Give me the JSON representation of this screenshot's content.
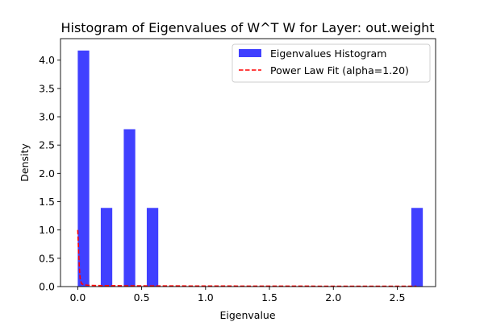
{
  "chart_data": {
    "type": "bar",
    "title": "Histogram of Eigenvalues of W^T W for Layer: out.weight",
    "xlabel": "Eigenvalue",
    "ylabel": "Density",
    "xlim": [
      -0.135,
      2.8
    ],
    "ylim": [
      0,
      4.38
    ],
    "xticks": [
      0.0,
      0.5,
      1.0,
      1.5,
      2.0,
      2.5
    ],
    "xtick_labels": [
      "0.0",
      "0.5",
      "1.0",
      "1.5",
      "2.0",
      "2.5"
    ],
    "yticks": [
      0.0,
      0.5,
      1.0,
      1.5,
      2.0,
      2.5,
      3.0,
      3.5,
      4.0
    ],
    "ytick_labels": [
      "0.0",
      "0.5",
      "1.0",
      "1.5",
      "2.0",
      "2.5",
      "3.0",
      "3.5",
      "4.0"
    ],
    "grid": false,
    "legend_position": "top-right",
    "series": [
      {
        "name": "Eigenvalues Histogram",
        "kind": "bar",
        "color": "#4040ff",
        "bin_edges": [
          0.0,
          0.09,
          0.18,
          0.27,
          0.36,
          0.45,
          0.54,
          0.63,
          0.72,
          0.81,
          0.9,
          0.99,
          1.08,
          1.17,
          1.26,
          1.35,
          1.44,
          1.53,
          1.62,
          1.71,
          1.8,
          1.89,
          1.98,
          2.07,
          2.16,
          2.25,
          2.34,
          2.43,
          2.52,
          2.61,
          2.7
        ],
        "bar_width": 0.09,
        "values": [
          4.17,
          0,
          1.39,
          0,
          2.78,
          0,
          1.39,
          0,
          0,
          0,
          0,
          0,
          0,
          0,
          0,
          0,
          0,
          0,
          0,
          0,
          0,
          0,
          0,
          0,
          0,
          0,
          0,
          0,
          0,
          1.39
        ]
      },
      {
        "name": "Power Law Fit (alpha=1.20)",
        "kind": "line",
        "color": "#ff0000",
        "style": "dashed",
        "x": [
          0.0,
          0.005,
          0.01,
          0.015,
          0.02,
          0.03,
          0.05,
          0.1,
          0.3,
          0.6,
          1.0,
          1.5,
          2.0,
          2.5,
          2.65
        ],
        "y": [
          1.0,
          0.72,
          0.45,
          0.25,
          0.12,
          0.05,
          0.03,
          0.02,
          0.015,
          0.012,
          0.01,
          0.008,
          0.007,
          0.006,
          0.006
        ]
      }
    ]
  }
}
